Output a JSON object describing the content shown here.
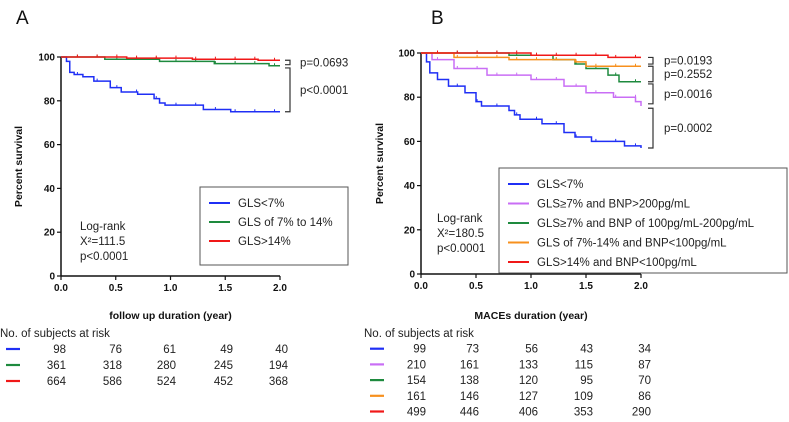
{
  "chart_data": [
    {
      "type": "line",
      "panel_label": "A",
      "xlabel": "follow up duration (year)",
      "ylabel": "Percent survival",
      "xlim": [
        0,
        2.0
      ],
      "ylim": [
        0,
        100
      ],
      "xticks": [
        "0.0",
        "0.5",
        "1.0",
        "1.5",
        "2.0"
      ],
      "yticks": [
        "0",
        "20",
        "40",
        "60",
        "80",
        "100"
      ],
      "legend_placement": "bottom-right",
      "stats": [
        "Log-rank",
        "X²=111.5",
        "p<0.0001"
      ],
      "series": [
        {
          "name": "GLS<7%",
          "color": "#1f2ff5",
          "steps": [
            [
              0,
              100
            ],
            [
              0.05,
              98
            ],
            [
              0.08,
              93
            ],
            [
              0.12,
              92
            ],
            [
              0.2,
              91
            ],
            [
              0.3,
              89
            ],
            [
              0.45,
              86
            ],
            [
              0.55,
              84
            ],
            [
              0.7,
              83
            ],
            [
              0.85,
              81
            ],
            [
              0.9,
              79
            ],
            [
              0.95,
              78
            ],
            [
              1.3,
              76
            ],
            [
              1.55,
              75
            ],
            [
              2.0,
              75
            ]
          ]
        },
        {
          "name": "GLS of 7% to 14%",
          "color": "#1e8a3e",
          "steps": [
            [
              0,
              100
            ],
            [
              0.4,
              99
            ],
            [
              0.9,
              98
            ],
            [
              1.4,
              97
            ],
            [
              1.9,
              96
            ],
            [
              2.0,
              96
            ]
          ]
        },
        {
          "name": "GLS>14%",
          "color": "#f01818",
          "steps": [
            [
              0,
              100
            ],
            [
              0.6,
              99.5
            ],
            [
              1.2,
              99
            ],
            [
              1.8,
              98.5
            ],
            [
              2.0,
              98.5
            ]
          ]
        }
      ],
      "comparisons": [
        {
          "label": "p=0.0693",
          "from": 98.5,
          "to": 96.5
        },
        {
          "label": "p<0.0001",
          "from": 95,
          "to": 75
        }
      ],
      "risk_table": {
        "title": "No. of subjects at risk",
        "rows": [
          [
            98,
            76,
            61,
            49,
            40
          ],
          [
            361,
            318,
            280,
            245,
            194
          ],
          [
            664,
            586,
            524,
            452,
            368
          ]
        ]
      }
    },
    {
      "type": "line",
      "panel_label": "B",
      "xlabel": "MACEs duration (year)",
      "ylabel": "Percent survival",
      "xlim": [
        0,
        2.0
      ],
      "ylim": [
        0,
        100
      ],
      "xticks": [
        "0.0",
        "0.5",
        "1.0",
        "1.5",
        "2.0"
      ],
      "yticks": [
        "0",
        "20",
        "40",
        "60",
        "80",
        "100"
      ],
      "legend_placement": "bottom-right",
      "stats": [
        "Log-rank",
        "X²=180.5",
        "p<0.0001"
      ],
      "series": [
        {
          "name": "GLS<7%",
          "color": "#1f2ff5",
          "steps": [
            [
              0,
              100
            ],
            [
              0.05,
              96
            ],
            [
              0.08,
              91
            ],
            [
              0.15,
              88
            ],
            [
              0.25,
              85
            ],
            [
              0.4,
              82
            ],
            [
              0.5,
              78
            ],
            [
              0.55,
              76
            ],
            [
              0.8,
              74
            ],
            [
              0.85,
              72
            ],
            [
              0.9,
              70
            ],
            [
              1.1,
              68
            ],
            [
              1.3,
              64
            ],
            [
              1.4,
              62
            ],
            [
              1.55,
              60
            ],
            [
              1.85,
              58
            ],
            [
              2.0,
              57
            ]
          ]
        },
        {
          "name": "GLS≥7% and BNP>200pg/mL",
          "color": "#c96ef5",
          "steps": [
            [
              0,
              100
            ],
            [
              0.1,
              97
            ],
            [
              0.3,
              93
            ],
            [
              0.6,
              90
            ],
            [
              1.0,
              88
            ],
            [
              1.3,
              85
            ],
            [
              1.5,
              82
            ],
            [
              1.75,
              80
            ],
            [
              1.95,
              78
            ],
            [
              2.0,
              76
            ]
          ]
        },
        {
          "name": "GLS≥7% and BNP of 100pg/mL-200pg/mL",
          "color": "#1e8a3e",
          "steps": [
            [
              0,
              100
            ],
            [
              0.8,
              99
            ],
            [
              1.2,
              97
            ],
            [
              1.4,
              95
            ],
            [
              1.5,
              93
            ],
            [
              1.7,
              90
            ],
            [
              1.8,
              87
            ],
            [
              2.0,
              87
            ]
          ]
        },
        {
          "name": "GLS of 7%-14% and BNP<100pg/mL",
          "color": "#f7901e",
          "steps": [
            [
              0,
              100
            ],
            [
              0.3,
              98
            ],
            [
              0.8,
              97
            ],
            [
              1.4,
              96
            ],
            [
              1.5,
              94
            ],
            [
              2.0,
              94
            ]
          ]
        },
        {
          "name": "GLS>14% and BNP<100pg/mL",
          "color": "#f01818",
          "steps": [
            [
              0,
              100
            ],
            [
              1.0,
              99
            ],
            [
              1.7,
              98
            ],
            [
              2.0,
              98
            ]
          ]
        }
      ],
      "comparisons": [
        {
          "label": "p=0.0193",
          "from": 98,
          "to": 95
        },
        {
          "label": "p=0.2552",
          "from": 94,
          "to": 87
        },
        {
          "label": "p=0.0016",
          "from": 86,
          "to": 77
        },
        {
          "label": "p=0.0002",
          "from": 75,
          "to": 57
        }
      ],
      "risk_table": {
        "title": "No. of subjects at risk",
        "rows": [
          [
            99,
            73,
            56,
            43,
            34
          ],
          [
            210,
            161,
            133,
            115,
            87
          ],
          [
            154,
            138,
            120,
            95,
            70
          ],
          [
            161,
            146,
            127,
            109,
            86
          ],
          [
            499,
            446,
            406,
            353,
            290
          ]
        ]
      }
    }
  ]
}
